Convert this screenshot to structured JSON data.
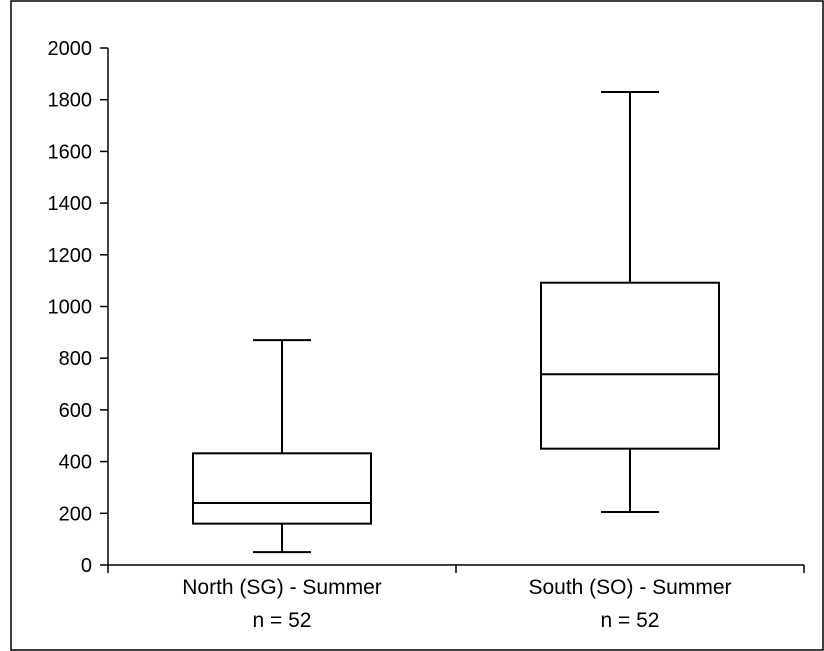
{
  "chart_data": {
    "type": "box",
    "title": "",
    "xlabel": "",
    "ylabel": "",
    "ylim": [
      0,
      2000
    ],
    "yticks": [
      0,
      200,
      400,
      600,
      800,
      1000,
      1200,
      1400,
      1600,
      1800,
      2000
    ],
    "grid": false,
    "legend": "none",
    "categories": [
      {
        "label": "North (SG) - Summer",
        "n_label": "n = 52",
        "min": 50,
        "q1": 160,
        "median": 240,
        "q3": 432,
        "max": 870
      },
      {
        "label": "South (SO) - Summer",
        "n_label": "n = 52",
        "min": 205,
        "q1": 450,
        "median": 738,
        "q3": 1092,
        "max": 1830
      }
    ],
    "colors": {
      "stroke": "#000000",
      "background": "#ffffff",
      "frame": "#000000"
    }
  }
}
